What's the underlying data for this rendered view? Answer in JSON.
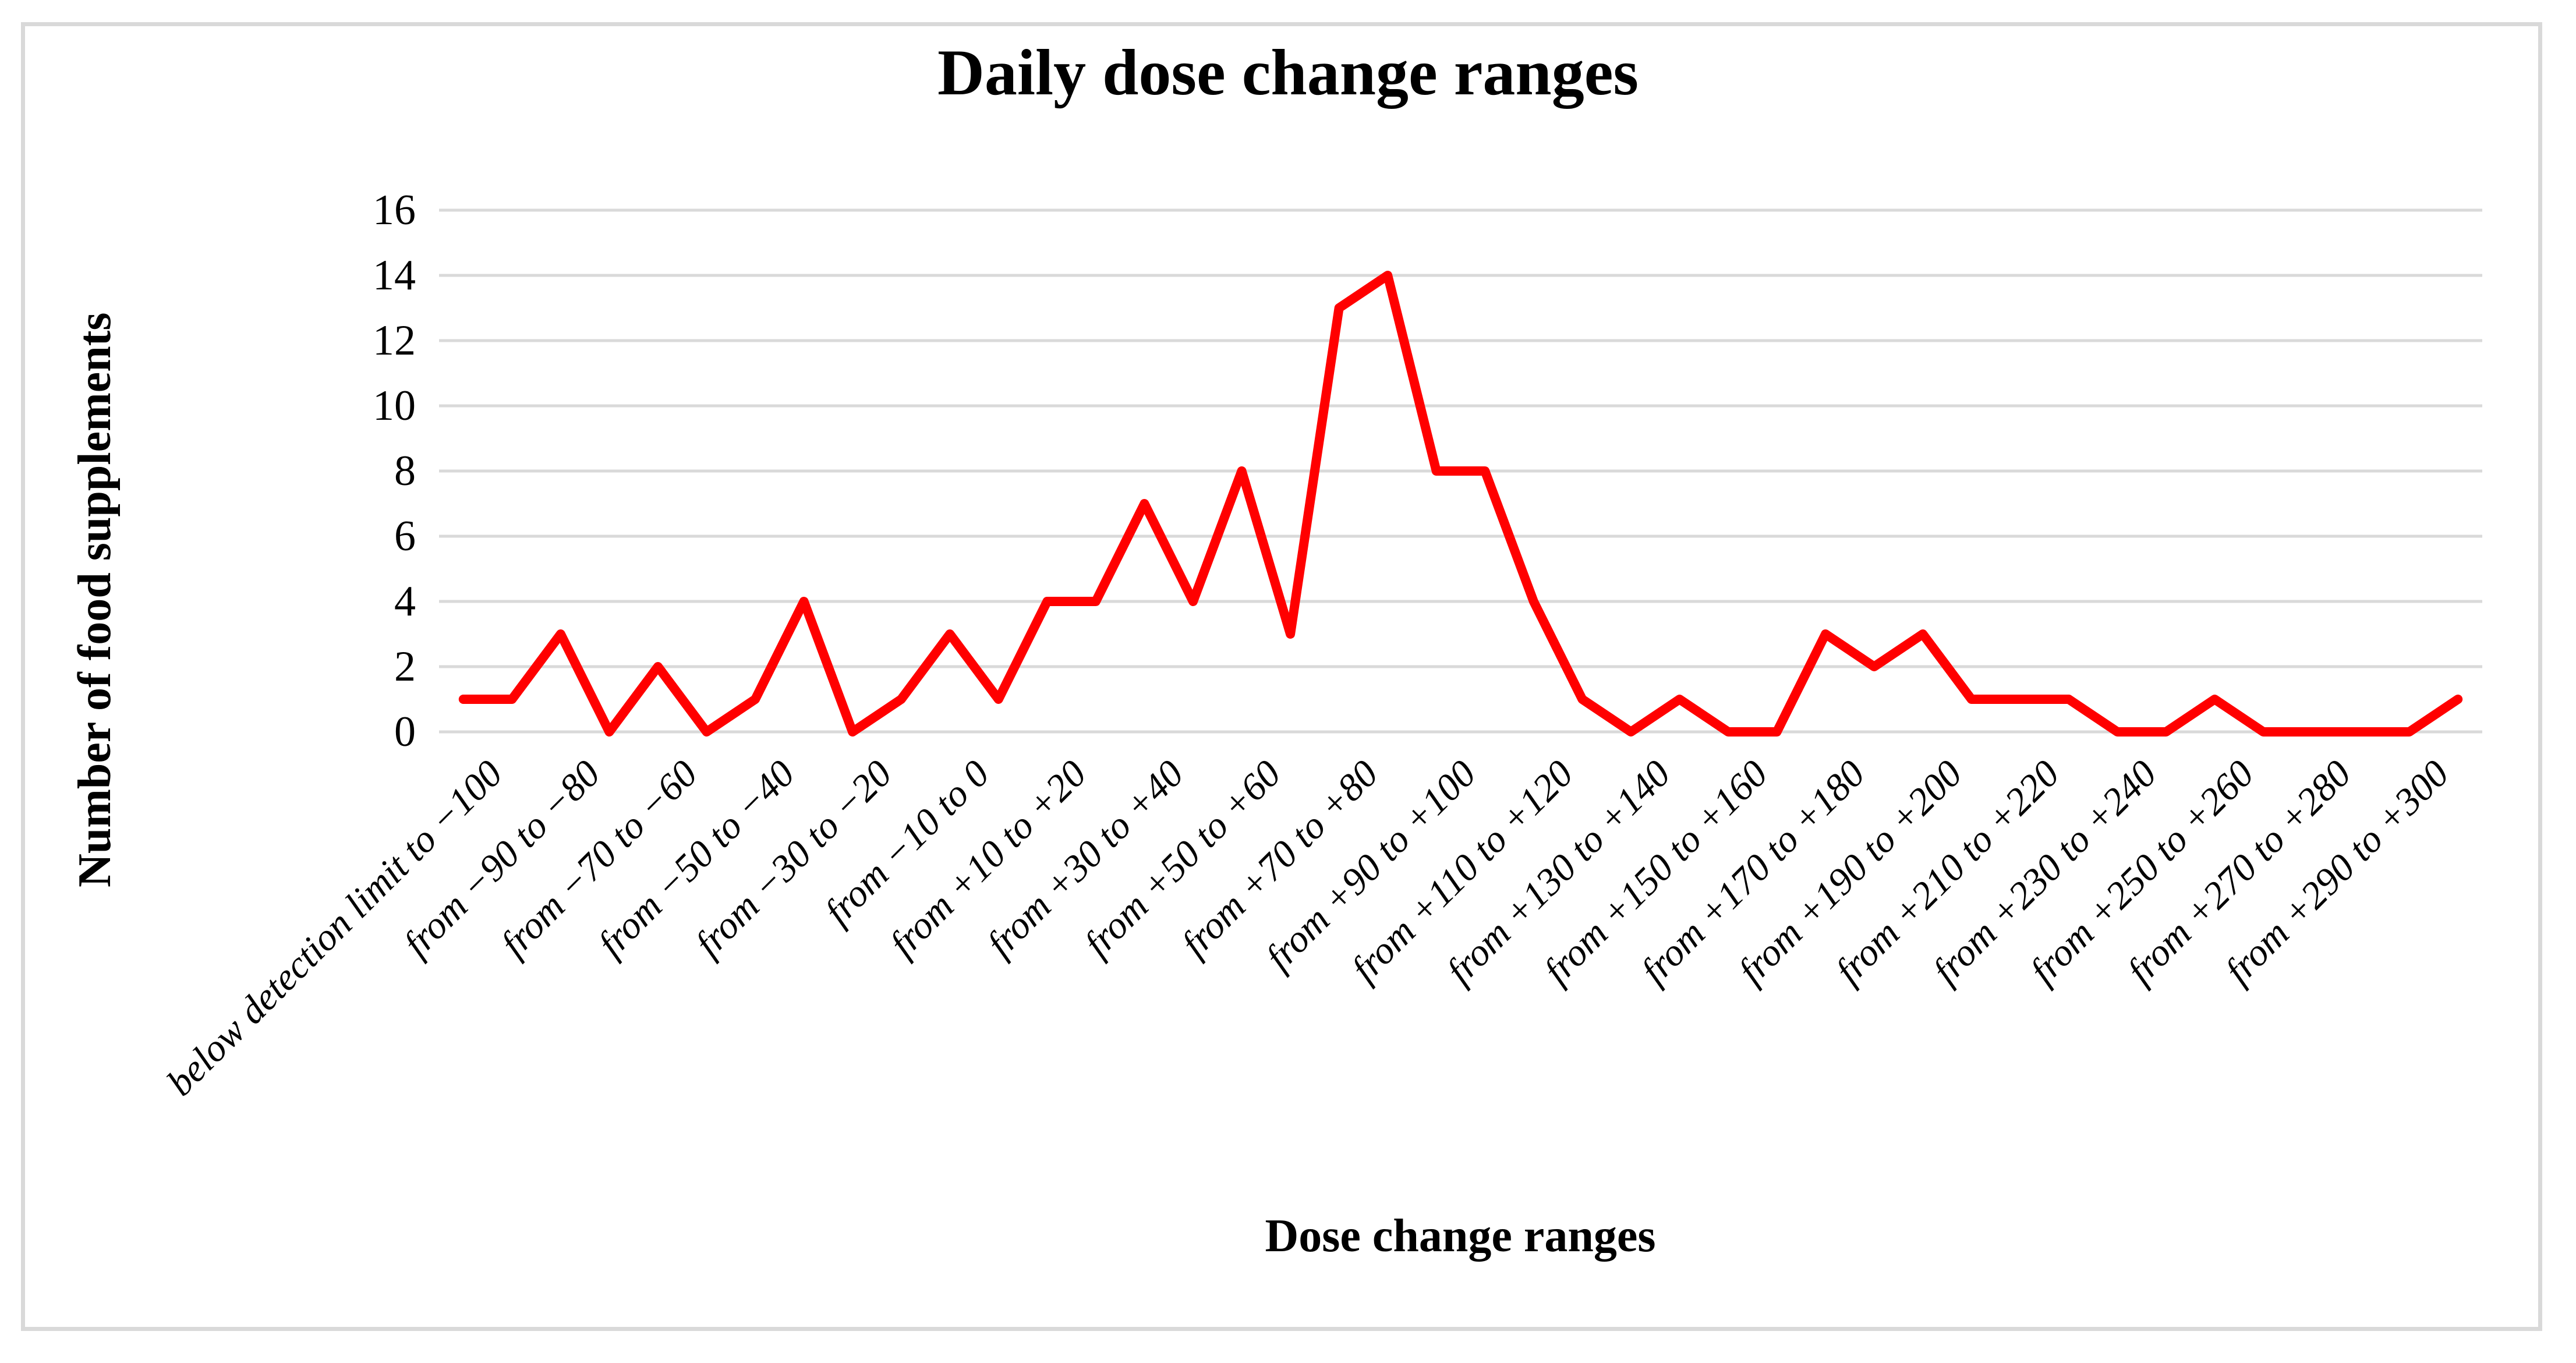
{
  "colors": {
    "series_line": "#ff0000",
    "gridline": "#d9d9d9",
    "figure_border": "#d9d9d9",
    "text": "#000000",
    "background": "#ffffff"
  },
  "chart_data": {
    "type": "line",
    "title": "Daily dose change ranges",
    "xlabel": "Dose change ranges",
    "ylabel": "Number of food supplements",
    "ylim": [
      0,
      16
    ],
    "yticks": [
      0,
      2,
      4,
      6,
      8,
      10,
      12,
      14,
      16
    ],
    "grid": "horizontal-only",
    "legend": "none",
    "x_label_every": 2,
    "x_labels": [
      "below detection limit to −100",
      "from −90 to −80",
      "from −70 to −60",
      "from −50 to −40",
      "from −30 to −20",
      "from −10 to 0",
      "from +10 to +20",
      "from +30 to +40",
      "from +50 to +60",
      "from +70 to +80",
      "from +90 to +100",
      "from +110 to +120",
      "from +130 to +140",
      "from +150 to +160",
      "from +170 to +180",
      "from +190 to +200",
      "from +210 to +220",
      "from +230 to +240",
      "from +250 to +260",
      "from +270 to +280",
      "from +290 to +300"
    ],
    "series": [
      {
        "name": "Number of food supplements",
        "values": [
          1,
          1,
          3,
          0,
          2,
          0,
          1,
          4,
          0,
          1,
          3,
          1,
          4,
          4,
          7,
          4,
          8,
          3,
          13,
          14,
          8,
          8,
          4,
          1,
          0,
          1,
          0,
          0,
          3,
          2,
          3,
          1,
          1,
          1,
          0,
          0,
          1,
          0,
          0,
          0,
          0,
          1
        ]
      }
    ]
  }
}
